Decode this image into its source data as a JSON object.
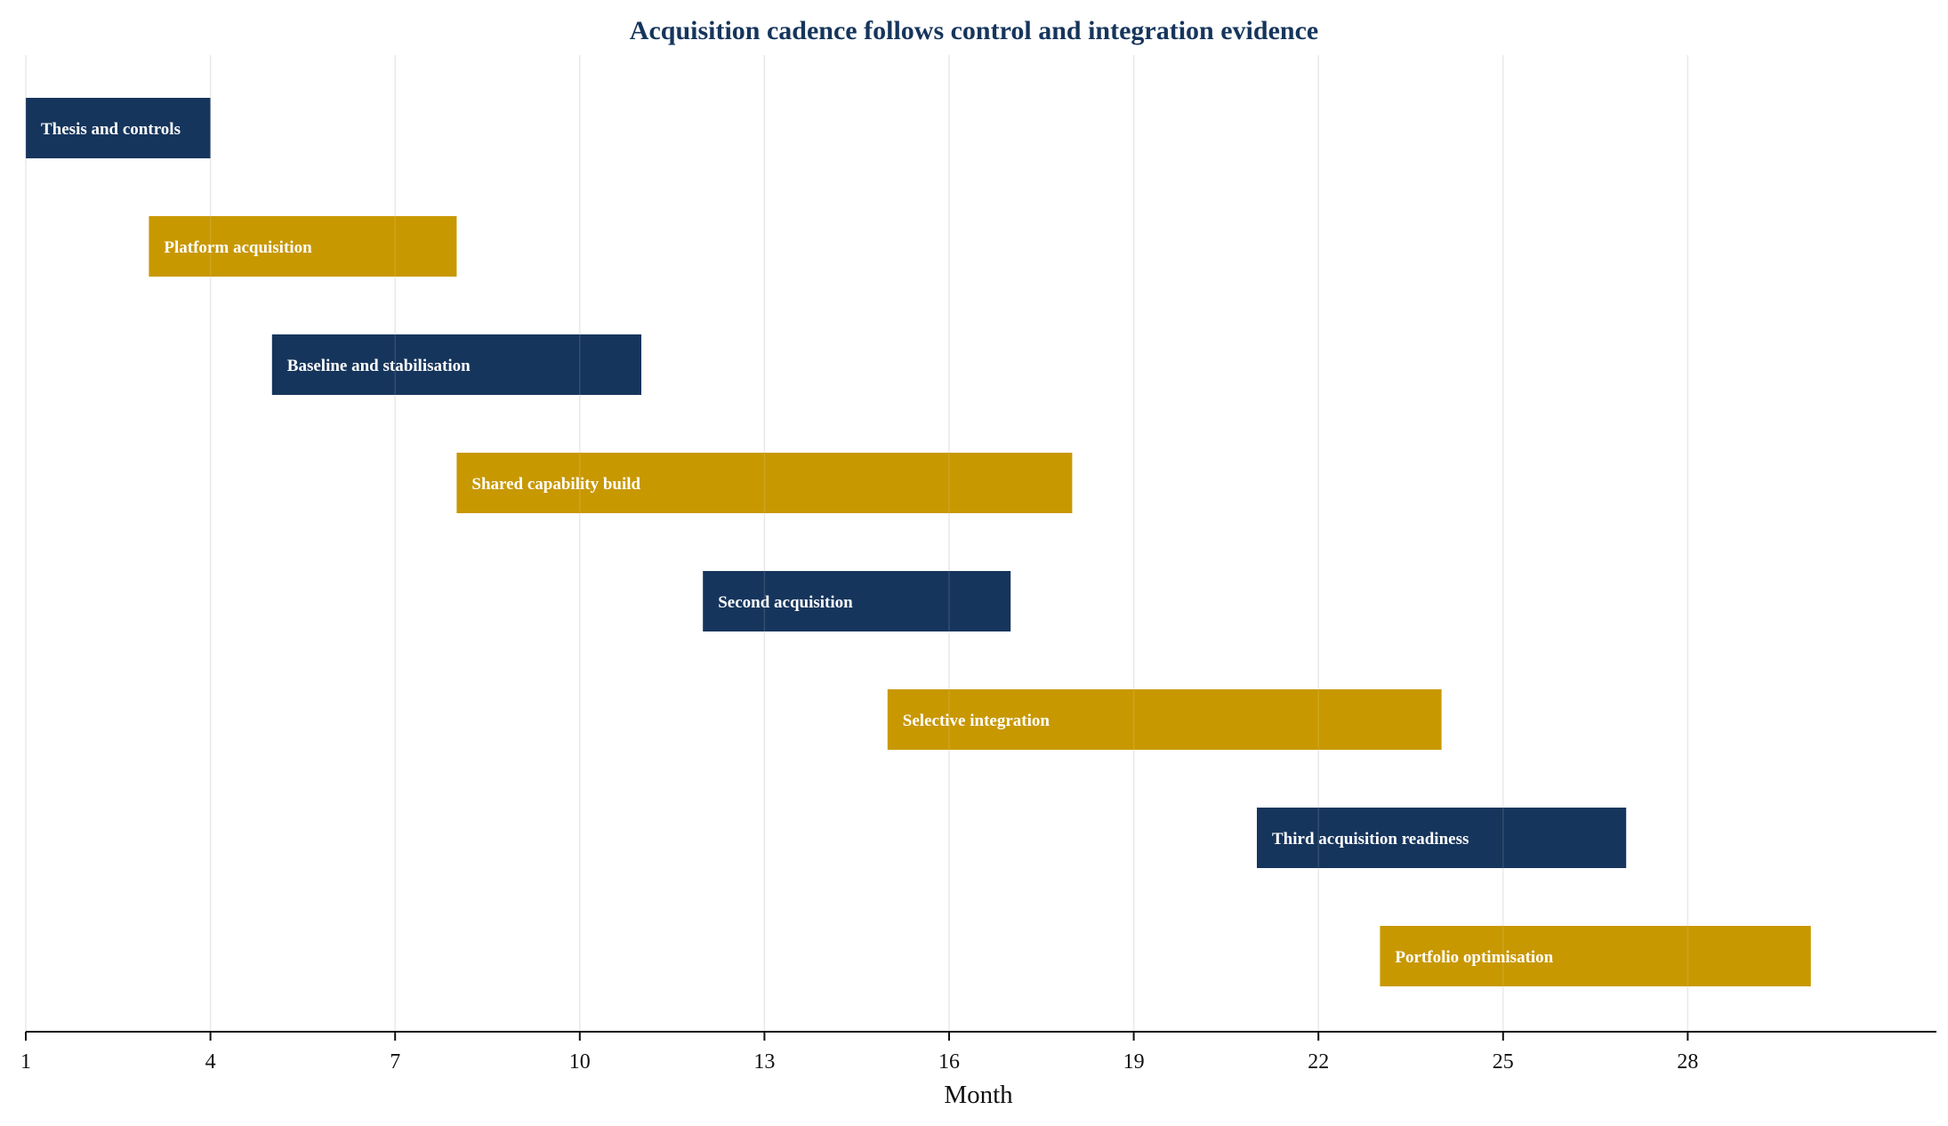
{
  "chart_data": {
    "type": "gantt",
    "title": "Acquisition cadence follows control and integration evidence",
    "xlabel": "Month",
    "ylabel": "",
    "xlim": [
      1,
      32
    ],
    "xticks": [
      1,
      4,
      7,
      10,
      13,
      16,
      19,
      22,
      25,
      28
    ],
    "grid": "vertical",
    "tasks": [
      {
        "label": "Thesis and controls",
        "start": 1,
        "end": 4,
        "color": "#16355c"
      },
      {
        "label": "Platform acquisition",
        "start": 3,
        "end": 8,
        "color": "#c89800"
      },
      {
        "label": "Baseline and stabilisation",
        "start": 5,
        "end": 11,
        "color": "#16355c"
      },
      {
        "label": "Shared capability build",
        "start": 8,
        "end": 18,
        "color": "#c89800"
      },
      {
        "label": "Second acquisition",
        "start": 12,
        "end": 17,
        "color": "#16355c"
      },
      {
        "label": "Selective integration",
        "start": 15,
        "end": 24,
        "color": "#c89800"
      },
      {
        "label": "Third acquisition readiness",
        "start": 21,
        "end": 27,
        "color": "#16355c"
      },
      {
        "label": "Portfolio optimisation",
        "start": 23,
        "end": 30,
        "color": "#c89800"
      }
    ],
    "colors": {
      "title": "#16355c",
      "navy": "#16355c",
      "gold": "#c89800",
      "grid": "#e6e6e6",
      "axis": "#111111"
    }
  }
}
